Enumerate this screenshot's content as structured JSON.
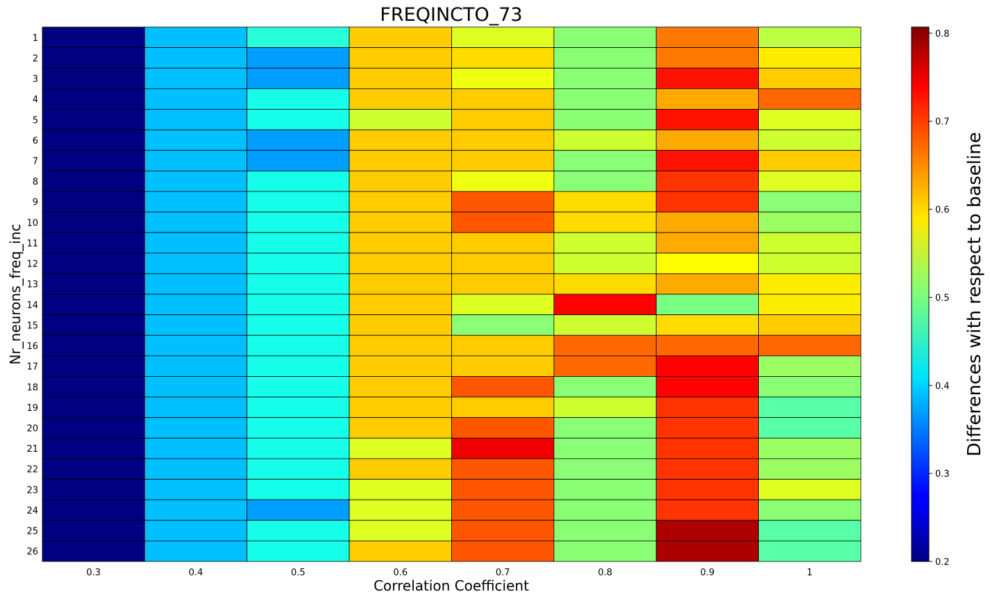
{
  "chart_data": {
    "type": "heatmap",
    "title": "FREQINCTO_73",
    "xlabel": "Correlation Coefficient",
    "ylabel": "Nr_neurons_freq_inc",
    "x_categories": [
      "0.3",
      "0.4",
      "0.5",
      "0.6",
      "0.7",
      "0.8",
      "0.9",
      "1"
    ],
    "y_categories": [
      "1",
      "2",
      "3",
      "4",
      "5",
      "6",
      "7",
      "8",
      "9",
      "10",
      "11",
      "12",
      "13",
      "14",
      "15",
      "16",
      "17",
      "18",
      "19",
      "20",
      "21",
      "22",
      "23",
      "24",
      "25",
      "26"
    ],
    "colorbar": {
      "label": "Differences with respect to baseline",
      "colormap": "jet",
      "range": [
        0.2,
        0.807
      ],
      "ticks": [
        "0.2",
        "0.3",
        "0.4",
        "0.5",
        "0.6",
        "0.7",
        "0.8"
      ]
    },
    "grid": true,
    "values": [
      [
        0.2,
        0.39,
        0.45,
        0.61,
        0.56,
        0.51,
        0.66,
        0.54
      ],
      [
        0.2,
        0.39,
        0.37,
        0.61,
        0.6,
        0.51,
        0.66,
        0.59
      ],
      [
        0.2,
        0.39,
        0.37,
        0.61,
        0.57,
        0.51,
        0.72,
        0.61
      ],
      [
        0.2,
        0.39,
        0.44,
        0.61,
        0.61,
        0.51,
        0.63,
        0.67
      ],
      [
        0.2,
        0.39,
        0.44,
        0.55,
        0.61,
        0.51,
        0.72,
        0.56
      ],
      [
        0.2,
        0.39,
        0.37,
        0.61,
        0.61,
        0.55,
        0.63,
        0.55
      ],
      [
        0.2,
        0.39,
        0.37,
        0.61,
        0.61,
        0.51,
        0.72,
        0.61
      ],
      [
        0.2,
        0.39,
        0.44,
        0.61,
        0.57,
        0.51,
        0.7,
        0.56
      ],
      [
        0.2,
        0.39,
        0.44,
        0.61,
        0.68,
        0.6,
        0.7,
        0.51
      ],
      [
        0.2,
        0.39,
        0.44,
        0.61,
        0.68,
        0.6,
        0.63,
        0.52
      ],
      [
        0.2,
        0.39,
        0.44,
        0.61,
        0.61,
        0.55,
        0.63,
        0.55
      ],
      [
        0.2,
        0.39,
        0.44,
        0.61,
        0.61,
        0.55,
        0.58,
        0.55
      ],
      [
        0.2,
        0.39,
        0.44,
        0.61,
        0.61,
        0.6,
        0.63,
        0.59
      ],
      [
        0.2,
        0.39,
        0.44,
        0.61,
        0.56,
        0.73,
        0.5,
        0.59
      ],
      [
        0.2,
        0.39,
        0.44,
        0.61,
        0.51,
        0.55,
        0.6,
        0.61
      ],
      [
        0.2,
        0.39,
        0.44,
        0.61,
        0.61,
        0.67,
        0.67,
        0.67
      ],
      [
        0.2,
        0.39,
        0.44,
        0.61,
        0.61,
        0.67,
        0.73,
        0.52
      ],
      [
        0.2,
        0.39,
        0.44,
        0.61,
        0.68,
        0.51,
        0.73,
        0.51
      ],
      [
        0.2,
        0.39,
        0.44,
        0.61,
        0.61,
        0.55,
        0.7,
        0.48
      ],
      [
        0.2,
        0.39,
        0.44,
        0.61,
        0.68,
        0.51,
        0.7,
        0.48
      ],
      [
        0.2,
        0.39,
        0.44,
        0.56,
        0.74,
        0.51,
        0.7,
        0.52
      ],
      [
        0.2,
        0.39,
        0.44,
        0.61,
        0.68,
        0.51,
        0.7,
        0.52
      ],
      [
        0.2,
        0.39,
        0.44,
        0.56,
        0.68,
        0.51,
        0.7,
        0.56
      ],
      [
        0.2,
        0.39,
        0.37,
        0.56,
        0.68,
        0.51,
        0.7,
        0.51
      ],
      [
        0.2,
        0.39,
        0.44,
        0.56,
        0.68,
        0.51,
        0.78,
        0.48
      ],
      [
        0.2,
        0.39,
        0.44,
        0.61,
        0.68,
        0.51,
        0.78,
        0.48
      ]
    ]
  }
}
